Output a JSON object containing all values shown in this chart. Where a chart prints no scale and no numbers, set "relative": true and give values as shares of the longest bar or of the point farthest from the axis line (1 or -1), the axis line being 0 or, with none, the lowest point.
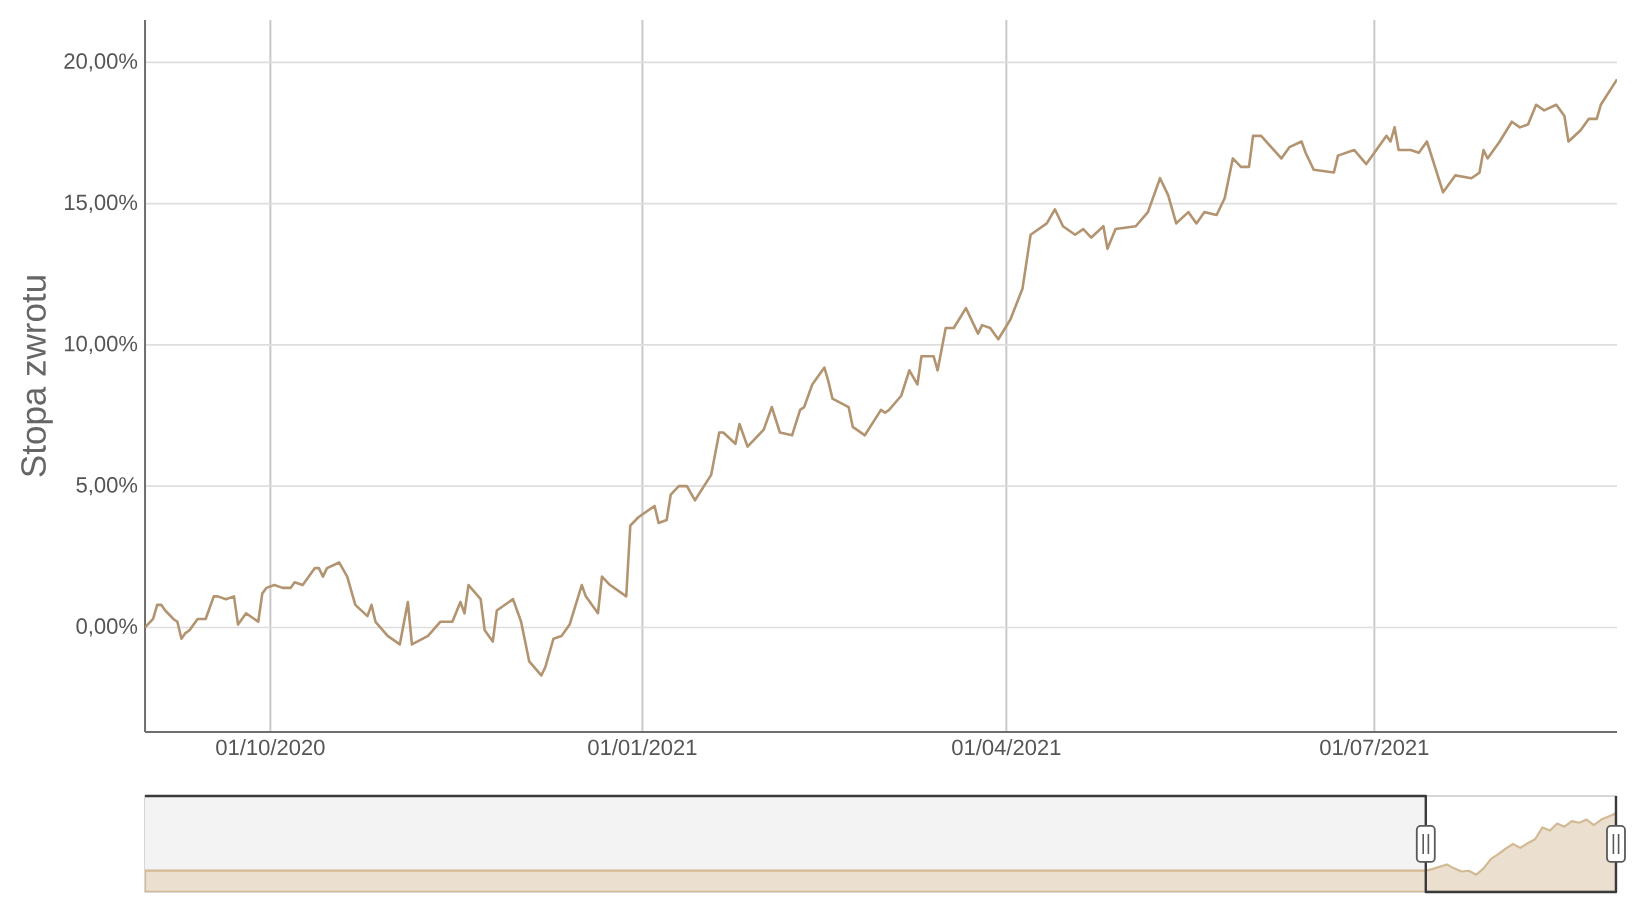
{
  "chart_data": [
    {
      "type": "line",
      "ylabel": "Stopa zwrotu",
      "color": "#b39470",
      "marker": "none",
      "grid": true,
      "xlim": [
        "2020-08-31",
        "2021-08-30"
      ],
      "ylim": [
        -3.7,
        21.5
      ],
      "xticks": [
        {
          "value": "2020-10-01",
          "label": "01/10/2020"
        },
        {
          "value": "2021-01-01",
          "label": "01/01/2021"
        },
        {
          "value": "2021-04-01",
          "label": "01/04/2021"
        },
        {
          "value": "2021-07-01",
          "label": "01/07/2021"
        }
      ],
      "yticks": [
        {
          "value": 0,
          "label": "0,00%"
        },
        {
          "value": 5,
          "label": "5,00%"
        },
        {
          "value": 10,
          "label": "10,00%"
        },
        {
          "value": 15,
          "label": "15,00%"
        },
        {
          "value": 20,
          "label": "20,00%"
        }
      ],
      "x": [
        "2020-08-31",
        "2020-09-02",
        "2020-09-03",
        "2020-09-04",
        "2020-09-05",
        "2020-09-07",
        "2020-09-08",
        "2020-09-09",
        "2020-09-10",
        "2020-09-11",
        "2020-09-13",
        "2020-09-15",
        "2020-09-17",
        "2020-09-18",
        "2020-09-20",
        "2020-09-22",
        "2020-09-23",
        "2020-09-25",
        "2020-09-28",
        "2020-09-29",
        "2020-09-30",
        "2020-10-02",
        "2020-10-04",
        "2020-10-06",
        "2020-10-07",
        "2020-10-09",
        "2020-10-12",
        "2020-10-13",
        "2020-10-14",
        "2020-10-15",
        "2020-10-18",
        "2020-10-20",
        "2020-10-22",
        "2020-10-25",
        "2020-10-26",
        "2020-10-27",
        "2020-10-30",
        "2020-11-02",
        "2020-11-04",
        "2020-11-05",
        "2020-11-09",
        "2020-11-12",
        "2020-11-13",
        "2020-11-15",
        "2020-11-17",
        "2020-11-18",
        "2020-11-19",
        "2020-11-22",
        "2020-11-23",
        "2020-11-25",
        "2020-11-26",
        "2020-11-30",
        "2020-12-02",
        "2020-12-04",
        "2020-12-07",
        "2020-12-08",
        "2020-12-10",
        "2020-12-12",
        "2020-12-14",
        "2020-12-17",
        "2020-12-18",
        "2020-12-21",
        "2020-12-22",
        "2020-12-24",
        "2020-12-28",
        "2020-12-29",
        "2020-12-31",
        "2021-01-04",
        "2021-01-05",
        "2021-01-07",
        "2021-01-08",
        "2021-01-10",
        "2021-01-12",
        "2021-01-14",
        "2021-01-18",
        "2021-01-20",
        "2021-01-21",
        "2021-01-24",
        "2021-01-25",
        "2021-01-27",
        "2021-01-31",
        "2021-02-02",
        "2021-02-04",
        "2021-02-07",
        "2021-02-09",
        "2021-02-10",
        "2021-02-12",
        "2021-02-15",
        "2021-02-16",
        "2021-02-17",
        "2021-02-21",
        "2021-02-22",
        "2021-02-23",
        "2021-02-25",
        "2021-03-01",
        "2021-03-02",
        "2021-03-03",
        "2021-03-06",
        "2021-03-08",
        "2021-03-10",
        "2021-03-11",
        "2021-03-14",
        "2021-03-15",
        "2021-03-17",
        "2021-03-19",
        "2021-03-22",
        "2021-03-25",
        "2021-03-26",
        "2021-03-28",
        "2021-03-30",
        "2021-04-02",
        "2021-04-05",
        "2021-04-07",
        "2021-04-11",
        "2021-04-13",
        "2021-04-15",
        "2021-04-18",
        "2021-04-20",
        "2021-04-22",
        "2021-04-25",
        "2021-04-26",
        "2021-04-28",
        "2021-05-03",
        "2021-05-06",
        "2021-05-09",
        "2021-05-11",
        "2021-05-13",
        "2021-05-16",
        "2021-05-18",
        "2021-05-20",
        "2021-05-23",
        "2021-05-25",
        "2021-05-27",
        "2021-05-29",
        "2021-05-31",
        "2021-06-01",
        "2021-06-03",
        "2021-06-08",
        "2021-06-10",
        "2021-06-13",
        "2021-06-14",
        "2021-06-16",
        "2021-06-21",
        "2021-06-22",
        "2021-06-26",
        "2021-06-29",
        "2021-07-01",
        "2021-07-04",
        "2021-07-05",
        "2021-07-06",
        "2021-07-07",
        "2021-07-10",
        "2021-07-12",
        "2021-07-14",
        "2021-07-18",
        "2021-07-21",
        "2021-07-25",
        "2021-07-27",
        "2021-07-28",
        "2021-07-29",
        "2021-08-01",
        "2021-08-04",
        "2021-08-06",
        "2021-08-08",
        "2021-08-10",
        "2021-08-12",
        "2021-08-15",
        "2021-08-17",
        "2021-08-18",
        "2021-08-21",
        "2021-08-23",
        "2021-08-25",
        "2021-08-26",
        "2021-08-30"
      ],
      "values": [
        0.0,
        0.3,
        0.8,
        0.8,
        0.6,
        0.3,
        0.2,
        -0.4,
        -0.2,
        -0.1,
        0.3,
        0.3,
        1.1,
        1.1,
        1.0,
        1.1,
        0.1,
        0.5,
        0.2,
        1.2,
        1.4,
        1.5,
        1.4,
        1.4,
        1.6,
        1.5,
        2.1,
        2.1,
        1.8,
        2.1,
        2.3,
        1.8,
        0.8,
        0.4,
        0.8,
        0.2,
        -0.3,
        -0.6,
        0.9,
        -0.6,
        -0.3,
        0.2,
        0.2,
        0.2,
        0.9,
        0.5,
        1.5,
        1.0,
        -0.1,
        -0.5,
        0.6,
        1.0,
        0.2,
        -1.2,
        -1.7,
        -1.4,
        -0.4,
        -0.3,
        0.1,
        1.5,
        1.1,
        0.5,
        1.8,
        1.5,
        1.1,
        3.6,
        3.9,
        4.3,
        3.7,
        3.8,
        4.7,
        5.0,
        5.0,
        4.5,
        5.4,
        6.9,
        6.9,
        6.5,
        7.2,
        6.4,
        7.0,
        7.8,
        6.9,
        6.8,
        7.7,
        7.8,
        8.6,
        9.2,
        8.7,
        8.1,
        7.8,
        7.1,
        7.0,
        6.8,
        7.7,
        7.6,
        7.7,
        8.2,
        9.1,
        8.6,
        9.6,
        9.6,
        9.1,
        10.6,
        10.6,
        11.3,
        10.4,
        10.7,
        10.6,
        10.2,
        10.9,
        12.0,
        13.9,
        14.3,
        14.8,
        14.2,
        13.9,
        14.1,
        13.8,
        14.2,
        13.4,
        14.1,
        14.2,
        14.7,
        15.9,
        15.3,
        14.3,
        14.7,
        14.3,
        14.7,
        14.6,
        15.2,
        16.6,
        16.3,
        16.3,
        17.4,
        17.4,
        16.6,
        17.0,
        17.2,
        16.8,
        16.2,
        16.1,
        16.7,
        16.9,
        16.4,
        16.8,
        17.4,
        17.2,
        17.7,
        16.9,
        16.9,
        16.8,
        17.2,
        15.4,
        16.0,
        15.9,
        16.1,
        16.9,
        16.6,
        17.2,
        17.9,
        17.7,
        17.8,
        18.5,
        18.3,
        18.5,
        18.1,
        17.2,
        17.6,
        18.0,
        18.0,
        18.5,
        19.4
      ]
    },
    {
      "type": "area",
      "relative": true,
      "color": "#ebdfcf",
      "categories": [
        null,
        null,
        null,
        null,
        null,
        null,
        null,
        null,
        null,
        null,
        null,
        null,
        null,
        null,
        null,
        null,
        null,
        null,
        null,
        null,
        null,
        null,
        null,
        null,
        null,
        null,
        null,
        null,
        null,
        null,
        null,
        null,
        null,
        null,
        null,
        null,
        null,
        null,
        null,
        null,
        null,
        null,
        null,
        null,
        null,
        null,
        null,
        null,
        null,
        null,
        null,
        null,
        null,
        null,
        null,
        null,
        null,
        null,
        null,
        null,
        null,
        null,
        null,
        null,
        null,
        null,
        null,
        null,
        null,
        null,
        null,
        null,
        null,
        null,
        null,
        null,
        null,
        null,
        null,
        null,
        null,
        null,
        null,
        null,
        null,
        null,
        null,
        null,
        null,
        null,
        null,
        null,
        null,
        null,
        null,
        null,
        null,
        null,
        null,
        null,
        null,
        null,
        null,
        null,
        null,
        null,
        null,
        null,
        null,
        null,
        null,
        null,
        null,
        null,
        null,
        null,
        null,
        null,
        null,
        null,
        null,
        null,
        null,
        null,
        null,
        null,
        null,
        null,
        null,
        null,
        null,
        null,
        null,
        null,
        null,
        null,
        null,
        null,
        null,
        null,
        null,
        null,
        null,
        null,
        null,
        null,
        null,
        null,
        null,
        null,
        null,
        null,
        null,
        null,
        null,
        null,
        null,
        null,
        null,
        null,
        null,
        null,
        null,
        null,
        null,
        null,
        null,
        null,
        null,
        null,
        null,
        null,
        null,
        null,
        null,
        null,
        null,
        null,
        null,
        null,
        null,
        null,
        null,
        null,
        null,
        null,
        null,
        null,
        null,
        null,
        null,
        null,
        null,
        null,
        null,
        null,
        null,
        null,
        null,
        null,
        null
      ],
      "values": [
        0.27,
        0.27,
        0.27,
        0.27,
        0.27,
        0.27,
        0.27,
        0.27,
        0.27,
        0.27,
        0.27,
        0.27,
        0.27,
        0.27,
        0.27,
        0.27,
        0.27,
        0.27,
        0.27,
        0.27,
        0.27,
        0.27,
        0.27,
        0.27,
        0.27,
        0.27,
        0.27,
        0.27,
        0.27,
        0.27,
        0.27,
        0.27,
        0.27,
        0.27,
        0.27,
        0.27,
        0.27,
        0.27,
        0.27,
        0.27,
        0.27,
        0.27,
        0.27,
        0.27,
        0.27,
        0.27,
        0.27,
        0.27,
        0.27,
        0.27,
        0.27,
        0.27,
        0.27,
        0.27,
        0.27,
        0.27,
        0.27,
        0.27,
        0.27,
        0.27,
        0.27,
        0.27,
        0.27,
        0.27,
        0.27,
        0.27,
        0.27,
        0.27,
        0.27,
        0.27,
        0.27,
        0.27,
        0.27,
        0.27,
        0.27,
        0.27,
        0.27,
        0.27,
        0.27,
        0.27,
        0.27,
        0.27,
        0.27,
        0.27,
        0.27,
        0.27,
        0.27,
        0.27,
        0.27,
        0.27,
        0.27,
        0.27,
        0.27,
        0.27,
        0.27,
        0.27,
        0.27,
        0.27,
        0.27,
        0.27,
        0.27,
        0.27,
        0.27,
        0.27,
        0.27,
        0.27,
        0.27,
        0.27,
        0.27,
        0.27,
        0.27,
        0.27,
        0.27,
        0.27,
        0.27,
        0.27,
        0.27,
        0.27,
        0.27,
        0.27,
        0.27,
        0.27,
        0.27,
        0.27,
        0.27,
        0.27,
        0.27,
        0.27,
        0.27,
        0.27,
        0.27,
        0.27,
        0.27,
        0.27,
        0.27,
        0.27,
        0.27,
        0.27,
        0.27,
        0.27,
        0.27,
        0.27,
        0.27,
        0.27,
        0.27,
        0.27,
        0.27,
        0.27,
        0.27,
        0.27,
        0.27,
        0.27,
        0.27,
        0.27,
        0.27,
        0.27,
        0.27,
        0.27,
        0.27,
        0.27,
        0.27,
        0.27,
        0.27,
        0.27,
        0.27,
        0.27,
        0.27,
        0.27,
        0.27,
        0.27,
        0.27,
        0.27,
        0.27,
        0.27,
        0.27,
        0.29,
        0.32,
        0.35,
        0.3,
        0.26,
        0.27,
        0.22,
        0.3,
        0.42,
        0.48,
        0.55,
        0.61,
        0.56,
        0.62,
        0.67,
        0.82,
        0.78,
        0.87,
        0.83,
        0.9,
        0.88,
        0.92,
        0.85,
        0.92,
        0.96,
        1.0
      ]
    }
  ]
}
